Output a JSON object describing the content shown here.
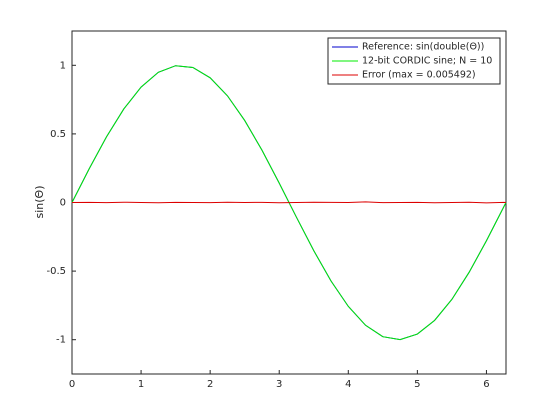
{
  "chart_data": {
    "type": "line",
    "ylabel": "sin(Θ)",
    "x": [
      0,
      0.25,
      0.5,
      0.75,
      1,
      1.25,
      1.5,
      1.75,
      2,
      2.25,
      2.5,
      2.75,
      3,
      3.25,
      3.5,
      3.75,
      4,
      4.25,
      4.5,
      4.75,
      5,
      5.25,
      5.5,
      5.75,
      6,
      6.25,
      6.2832
    ],
    "series": [
      {
        "name": "Reference: sin(double(Θ))",
        "color": "#0000cc",
        "values": [
          0,
          0.247,
          0.479,
          0.682,
          0.841,
          0.949,
          0.997,
          0.984,
          0.909,
          0.778,
          0.598,
          0.382,
          0.141,
          -0.108,
          -0.351,
          -0.572,
          -0.757,
          -0.895,
          -0.978,
          -0.999,
          -0.959,
          -0.859,
          -0.706,
          -0.508,
          -0.279,
          -0.033,
          0
        ]
      },
      {
        "name": "12-bit CORDIC sine; N = 10",
        "color": "#00ee00",
        "values": [
          0,
          0.247,
          0.479,
          0.682,
          0.841,
          0.949,
          0.997,
          0.984,
          0.909,
          0.778,
          0.598,
          0.382,
          0.141,
          -0.108,
          -0.351,
          -0.572,
          -0.757,
          -0.895,
          -0.978,
          -0.999,
          -0.959,
          -0.859,
          -0.706,
          -0.508,
          -0.279,
          -0.033,
          0
        ]
      },
      {
        "name": "Error (max = 0.005492)",
        "color": "#dd0000",
        "values": [
          0,
          0.001,
          -0.001,
          0.002,
          0,
          -0.002,
          0.001,
          0,
          -0.001,
          0.002,
          0,
          0.001,
          -0.002,
          0,
          0.002,
          0.001,
          0,
          0.005,
          -0.001,
          0,
          0.001,
          -0.002,
          0,
          0.002,
          -0.003,
          0.001,
          0
        ]
      }
    ],
    "xlim": [
      0,
      6.2832
    ],
    "xticks": [
      0,
      1,
      2,
      3,
      4,
      5,
      6
    ],
    "ylim": [
      -1.25,
      1.25
    ],
    "yticks": [
      -1,
      -0.5,
      0,
      0.5,
      1
    ],
    "grid": false,
    "legend": "top-right"
  }
}
